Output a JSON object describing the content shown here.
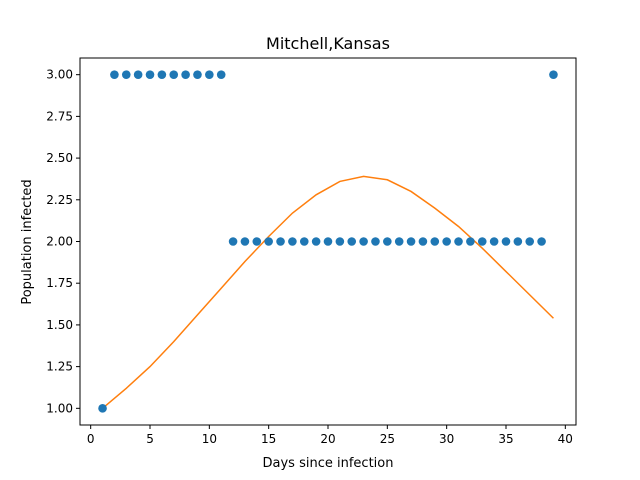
{
  "chart_data": {
    "type": "scatter",
    "title": "Mitchell,Kansas",
    "xlabel": "Days since infection",
    "ylabel": "Population infected",
    "xlim": [
      -0.9,
      40.9
    ],
    "ylim": [
      0.9,
      3.1
    ],
    "xticks": [
      0,
      5,
      10,
      15,
      20,
      25,
      30,
      35,
      40
    ],
    "xtick_labels": [
      "0",
      "5",
      "10",
      "15",
      "20",
      "25",
      "30",
      "35",
      "40"
    ],
    "yticks": [
      1.0,
      1.25,
      1.5,
      1.75,
      2.0,
      2.25,
      2.5,
      2.75,
      3.0
    ],
    "ytick_labels": [
      "1.00",
      "1.25",
      "1.50",
      "1.75",
      "2.00",
      "2.25",
      "2.50",
      "2.75",
      "3.00"
    ],
    "grid": false,
    "legend": "none",
    "series": [
      {
        "kind": "scatter",
        "color": "#1f77b4",
        "x": [
          1,
          2,
          3,
          4,
          5,
          6,
          7,
          8,
          9,
          10,
          11,
          12,
          13,
          14,
          15,
          16,
          17,
          18,
          19,
          20,
          21,
          22,
          23,
          24,
          25,
          26,
          27,
          28,
          29,
          30,
          31,
          32,
          33,
          34,
          35,
          36,
          37,
          38,
          39
        ],
        "y": [
          1,
          3,
          3,
          3,
          3,
          3,
          3,
          3,
          3,
          3,
          3,
          2,
          2,
          2,
          2,
          2,
          2,
          2,
          2,
          2,
          2,
          2,
          2,
          2,
          2,
          2,
          2,
          2,
          2,
          2,
          2,
          2,
          2,
          2,
          2,
          2,
          2,
          2,
          3
        ]
      },
      {
        "kind": "line",
        "color": "#ff7f0e",
        "x": [
          1,
          3,
          5,
          7,
          9,
          11,
          13,
          15,
          17,
          19,
          21,
          23,
          25,
          27,
          29,
          31,
          33,
          35,
          37,
          39
        ],
        "y": [
          1.0,
          1.12,
          1.25,
          1.4,
          1.56,
          1.72,
          1.88,
          2.03,
          2.17,
          2.28,
          2.36,
          2.39,
          2.37,
          2.3,
          2.2,
          2.09,
          1.96,
          1.82,
          1.68,
          1.54
        ]
      }
    ]
  }
}
